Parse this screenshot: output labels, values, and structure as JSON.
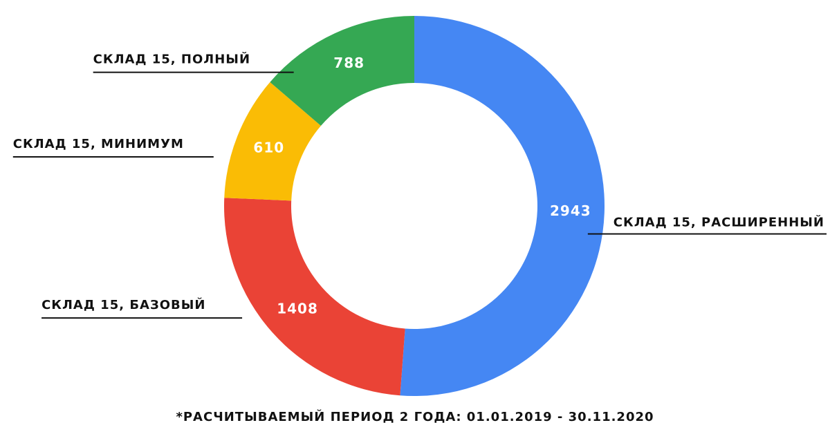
{
  "chart_data": {
    "type": "donut",
    "categories": [
      "СКЛАД 15, РАСШИРЕННЫЙ",
      "СКЛАД 15, БАЗОВЫЙ",
      "СКЛАД 15, МИНИМУМ",
      "СКЛАД 15, ПОЛНЫЙ"
    ],
    "values": [
      2943,
      1408,
      610,
      788
    ],
    "colors": [
      "#4587f3",
      "#ea4336",
      "#fabc05",
      "#35a853"
    ],
    "footnote": "*РАСЧИТЫВАЕМЫЙ ПЕРИОД 2 ГОДА: 01.01.2019 - 30.11.2020"
  }
}
